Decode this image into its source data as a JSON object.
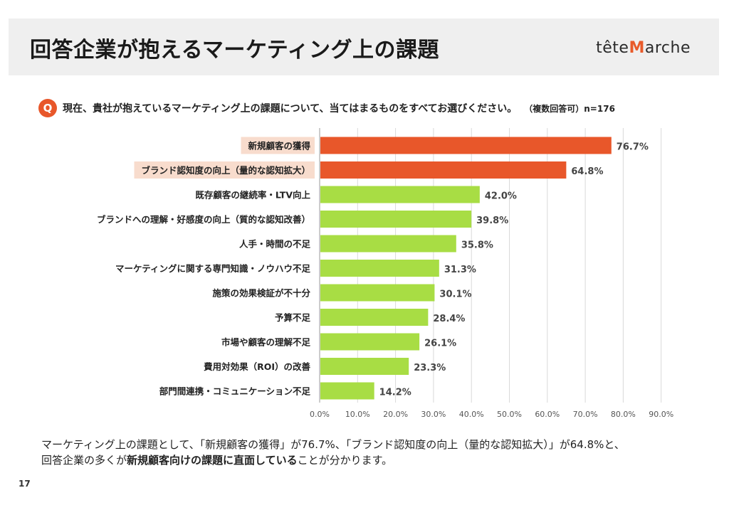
{
  "header": {
    "title": "回答企業が抱えるマーケティング上の課題",
    "logo_prefix": "tête",
    "logo_accent": "M",
    "logo_suffix": "arche"
  },
  "question": {
    "badge": "Q",
    "text": "現在、貴社が抱えているマーケティング上の課題について、当てはまるものをすべてお選びください。",
    "note": "（複数回答可）n=176"
  },
  "colors": {
    "highlight_bar": "#e8572a",
    "normal_bar": "#a8dd44",
    "highlight_label_bg": "#f8dccd",
    "grid": "#d9d9d9",
    "label_text": "#222222",
    "value_text": "#444444"
  },
  "chart_data": {
    "type": "bar",
    "orientation": "horizontal",
    "title": "",
    "xlabel": "",
    "ylabel": "",
    "xlim": [
      0,
      90
    ],
    "x_ticks": [
      0,
      10,
      20,
      30,
      40,
      50,
      60,
      70,
      80,
      90
    ],
    "x_tick_labels": [
      "0.0%",
      "10.0%",
      "20.0%",
      "30.0%",
      "40.0%",
      "50.0%",
      "60.0%",
      "70.0%",
      "80.0%",
      "90.0%"
    ],
    "grid": true,
    "categories": [
      "新規顧客の獲得",
      "ブランド認知度の向上（量的な認知拡大）",
      "既存顧客の継続率・LTV向上",
      "ブランドへの理解・好感度の向上（質的な認知改善）",
      "人手・時間の不足",
      "マーケティングに関する専門知識・ノウハウ不足",
      "施策の効果検証が不十分",
      "予算不足",
      "市場や顧客の理解不足",
      "費用対効果（ROI）の改善",
      "部門間連携・コミュニケーション不足"
    ],
    "values": [
      76.7,
      64.8,
      42.0,
      39.8,
      35.8,
      31.3,
      30.1,
      28.4,
      26.1,
      23.3,
      14.2
    ],
    "value_labels": [
      "76.7%",
      "64.8%",
      "42.0%",
      "39.8%",
      "35.8%",
      "31.3%",
      "30.1%",
      "28.4%",
      "26.1%",
      "23.3%",
      "14.2%"
    ],
    "highlighted": [
      true,
      true,
      false,
      false,
      false,
      false,
      false,
      false,
      false,
      false,
      false
    ]
  },
  "summary": {
    "line1": "マーケティング上の課題として、「新規顧客の獲得」が76.7%、「ブランド認知度の向上（量的な認知拡大）」が64.8%と、",
    "line2_pre": "回答企業の多くが",
    "line2_bold": "新規顧客向けの課題に直面している",
    "line2_post": "ことが分かります。"
  },
  "page_number": "17"
}
